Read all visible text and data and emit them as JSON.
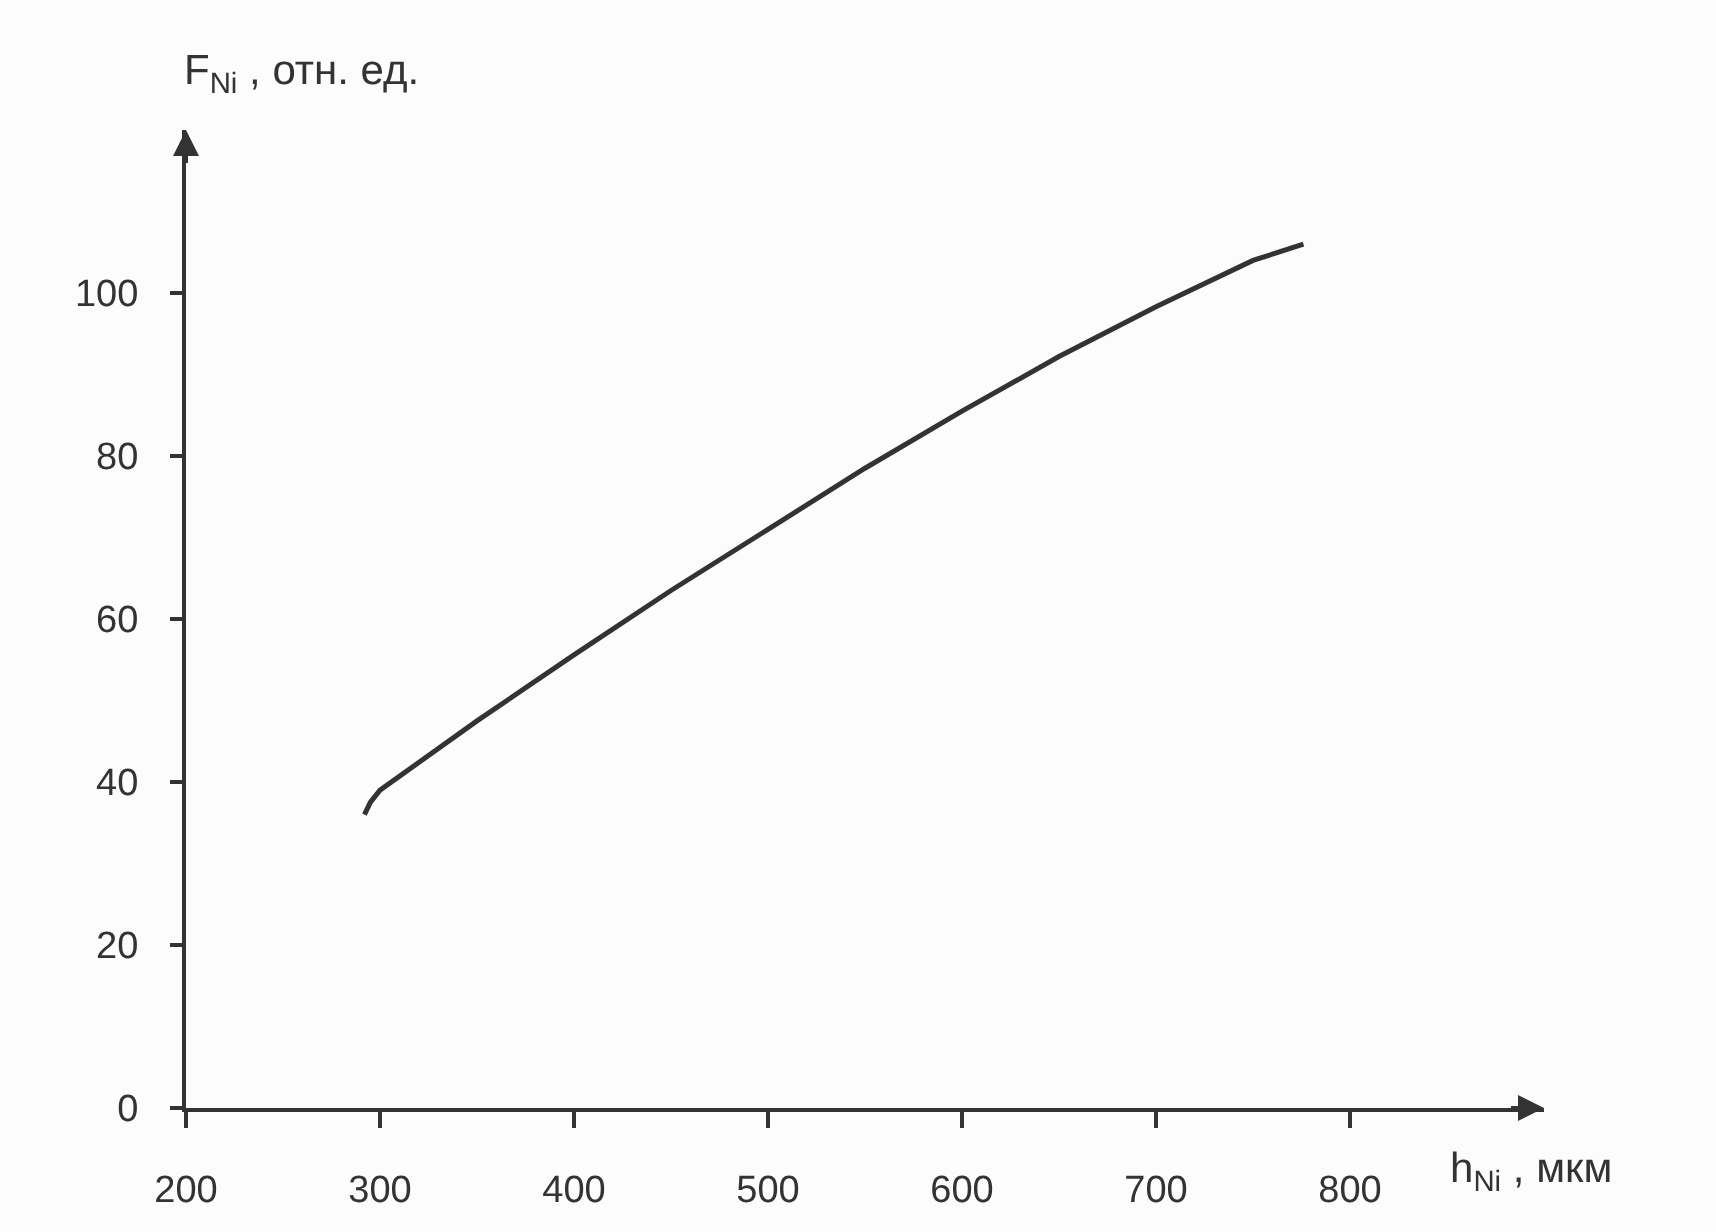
{
  "chart_data": {
    "type": "line",
    "xlabel": "h$_{Ni}$ , мкм",
    "ylabel": "F$_{Ni}$ , отн. ед.",
    "x": [
      292,
      295,
      300,
      350,
      400,
      450,
      500,
      550,
      600,
      650,
      700,
      750,
      776
    ],
    "series": [
      {
        "color": "#333333",
        "values": [
          36,
          37.5,
          39,
          47.5,
          55.6,
          63.5,
          71,
          78.5,
          85.5,
          92.2,
          98.3,
          104,
          106
        ]
      }
    ],
    "xlim": [
      200,
      900
    ],
    "ylim": [
      0,
      120
    ],
    "xticks": [
      200,
      300,
      400,
      500,
      600,
      700,
      800
    ],
    "yticks": [
      0,
      20,
      40,
      60,
      80,
      100
    ],
    "line_style": "solid"
  }
}
